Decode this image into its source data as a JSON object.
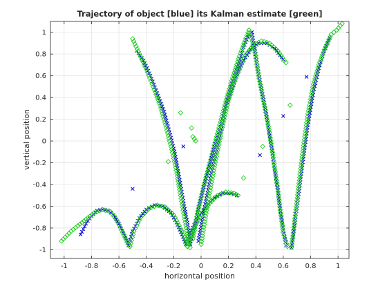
{
  "chart_data": {
    "type": "scatter",
    "title": "Trajectory of object [blue] its Kalman estimate [green]",
    "xlabel": "horizontal position",
    "ylabel": "vertical position",
    "xlim": [
      -1.1,
      1.08
    ],
    "ylim": [
      -1.08,
      1.1
    ],
    "xticks": [
      -1,
      -0.8,
      -0.6,
      -0.4,
      -0.2,
      0,
      0.2,
      0.4,
      0.6,
      0.8,
      1
    ],
    "xtick_labels": [
      "-1",
      "-0.8",
      "-0.6",
      "-0.4",
      "-0.2",
      "0",
      "0.2",
      "0.4",
      "0.6",
      "0.8",
      "1"
    ],
    "yticks": [
      -1,
      -0.8,
      -0.6,
      -0.4,
      -0.2,
      0,
      0.2,
      0.4,
      0.6,
      0.8,
      1
    ],
    "ytick_labels": [
      "-1",
      "-0.8",
      "-0.6",
      "-0.4",
      "-0.2",
      "0",
      "0.2",
      "0.4",
      "0.6",
      "0.8",
      "1"
    ],
    "grid": true,
    "colors": {
      "object": "#0000cc",
      "estimate": "#22cc22",
      "grid": "#e5e5e5",
      "axis": "#262626"
    },
    "series": [
      {
        "marker": "x",
        "color": "#0000cc",
        "segments": [
          [
            [
              -0.88,
              -0.86
            ],
            [
              -0.84,
              -0.76
            ],
            [
              -0.8,
              -0.69
            ],
            [
              -0.76,
              -0.64
            ],
            [
              -0.72,
              -0.63
            ],
            [
              -0.68,
              -0.64
            ],
            [
              -0.64,
              -0.68
            ],
            [
              -0.6,
              -0.76
            ],
            [
              -0.56,
              -0.87
            ],
            [
              -0.53,
              -0.96
            ]
          ],
          [
            [
              -0.53,
              -0.96
            ],
            [
              -0.5,
              -0.83
            ],
            [
              -0.45,
              -0.71
            ],
            [
              -0.4,
              -0.63
            ],
            [
              -0.34,
              -0.59
            ],
            [
              -0.28,
              -0.6
            ],
            [
              -0.22,
              -0.66
            ],
            [
              -0.18,
              -0.75
            ],
            [
              -0.14,
              -0.86
            ],
            [
              -0.11,
              -0.95
            ]
          ],
          [
            [
              -0.11,
              -0.95
            ],
            [
              -0.07,
              -0.82
            ],
            [
              -0.02,
              -0.7
            ],
            [
              0.04,
              -0.6
            ],
            [
              0.1,
              -0.52
            ],
            [
              0.16,
              -0.48
            ],
            [
              0.22,
              -0.48
            ],
            [
              0.26,
              -0.5
            ]
          ],
          [
            [
              -0.47,
              0.83
            ],
            [
              -0.42,
              0.74
            ],
            [
              -0.37,
              0.6
            ],
            [
              -0.32,
              0.44
            ],
            [
              -0.27,
              0.27
            ],
            [
              -0.23,
              0.08
            ],
            [
              -0.19,
              -0.12
            ],
            [
              -0.16,
              -0.33
            ],
            [
              -0.13,
              -0.55
            ],
            [
              -0.1,
              -0.75
            ],
            [
              -0.08,
              -0.95
            ]
          ],
          [
            [
              -0.08,
              -0.95
            ],
            [
              -0.03,
              -0.68
            ],
            [
              0.02,
              -0.42
            ],
            [
              0.07,
              -0.18
            ],
            [
              0.12,
              0.05
            ],
            [
              0.17,
              0.28
            ],
            [
              0.22,
              0.5
            ],
            [
              0.27,
              0.7
            ],
            [
              0.31,
              0.86
            ],
            [
              0.35,
              0.98
            ],
            [
              0.37,
              1.0
            ]
          ],
          [
            [
              0.37,
              1.0
            ],
            [
              0.4,
              0.8
            ],
            [
              0.43,
              0.56
            ],
            [
              0.47,
              0.3
            ],
            [
              0.5,
              0.05
            ],
            [
              0.53,
              -0.2
            ],
            [
              0.56,
              -0.45
            ],
            [
              0.58,
              -0.65
            ],
            [
              0.6,
              -0.82
            ],
            [
              0.62,
              -0.96
            ]
          ],
          [
            [
              -0.02,
              -0.92
            ],
            [
              0.03,
              -0.58
            ],
            [
              0.08,
              -0.27
            ],
            [
              0.13,
              0.03
            ],
            [
              0.18,
              0.3
            ],
            [
              0.24,
              0.54
            ],
            [
              0.3,
              0.72
            ],
            [
              0.36,
              0.84
            ],
            [
              0.42,
              0.9
            ],
            [
              0.48,
              0.9
            ],
            [
              0.54,
              0.85
            ],
            [
              0.6,
              0.75
            ]
          ],
          [
            [
              0.66,
              -0.98
            ],
            [
              0.7,
              -0.62
            ],
            [
              0.74,
              -0.22
            ],
            [
              0.78,
              0.15
            ],
            [
              0.82,
              0.45
            ],
            [
              0.86,
              0.67
            ],
            [
              0.9,
              0.83
            ],
            [
              0.94,
              0.95
            ]
          ],
          [
            [
              -0.5,
              -0.44
            ],
            [
              0.43,
              -0.13
            ],
            [
              0.6,
              0.23
            ],
            [
              0.77,
              0.59
            ],
            [
              -0.13,
              -0.05
            ]
          ]
        ]
      },
      {
        "marker": "diamond",
        "color": "#22cc22",
        "segments": [
          [
            [
              -1.02,
              -0.92
            ],
            [
              -0.95,
              -0.83
            ],
            [
              -0.9,
              -0.78
            ],
            [
              -0.84,
              -0.72
            ],
            [
              -0.78,
              -0.66
            ],
            [
              -0.72,
              -0.63
            ],
            [
              -0.66,
              -0.65
            ],
            [
              -0.62,
              -0.72
            ],
            [
              -0.58,
              -0.82
            ],
            [
              -0.54,
              -0.93
            ],
            [
              -0.52,
              -0.97
            ]
          ],
          [
            [
              -0.52,
              -0.97
            ],
            [
              -0.49,
              -0.83
            ],
            [
              -0.44,
              -0.7
            ],
            [
              -0.38,
              -0.62
            ],
            [
              -0.32,
              -0.59
            ],
            [
              -0.26,
              -0.61
            ],
            [
              -0.2,
              -0.68
            ],
            [
              -0.16,
              -0.78
            ],
            [
              -0.12,
              -0.88
            ],
            [
              -0.1,
              -0.97
            ]
          ],
          [
            [
              -0.1,
              -0.97
            ],
            [
              -0.06,
              -0.82
            ],
            [
              0.0,
              -0.68
            ],
            [
              0.06,
              -0.57
            ],
            [
              0.12,
              -0.5
            ],
            [
              0.18,
              -0.47
            ],
            [
              0.24,
              -0.48
            ],
            [
              0.27,
              -0.5
            ]
          ],
          [
            [
              -0.5,
              0.94
            ],
            [
              -0.45,
              0.8
            ],
            [
              -0.4,
              0.66
            ],
            [
              -0.35,
              0.5
            ],
            [
              -0.3,
              0.33
            ],
            [
              -0.26,
              0.15
            ],
            [
              -0.22,
              -0.05
            ],
            [
              -0.18,
              -0.27
            ],
            [
              -0.15,
              -0.5
            ],
            [
              -0.12,
              -0.72
            ],
            [
              -0.08,
              -0.98
            ]
          ],
          [
            [
              -0.06,
              -0.9
            ],
            [
              -0.02,
              -0.62
            ],
            [
              0.03,
              -0.36
            ],
            [
              0.08,
              -0.12
            ],
            [
              0.13,
              0.12
            ],
            [
              0.18,
              0.36
            ],
            [
              0.23,
              0.58
            ],
            [
              0.28,
              0.78
            ],
            [
              0.32,
              0.92
            ],
            [
              0.35,
              1.02
            ]
          ],
          [
            [
              0.35,
              1.02
            ],
            [
              0.39,
              0.84
            ],
            [
              0.42,
              0.6
            ],
            [
              0.46,
              0.34
            ],
            [
              0.5,
              0.08
            ],
            [
              0.53,
              -0.18
            ],
            [
              0.56,
              -0.44
            ],
            [
              0.58,
              -0.66
            ],
            [
              0.6,
              -0.84
            ],
            [
              0.63,
              -0.97
            ]
          ],
          [
            [
              0.0,
              -0.95
            ],
            [
              0.05,
              -0.56
            ],
            [
              0.1,
              -0.22
            ],
            [
              0.15,
              0.1
            ],
            [
              0.2,
              0.38
            ],
            [
              0.26,
              0.6
            ],
            [
              0.32,
              0.78
            ],
            [
              0.38,
              0.88
            ],
            [
              0.44,
              0.92
            ],
            [
              0.5,
              0.9
            ],
            [
              0.56,
              0.83
            ],
            [
              0.62,
              0.72
            ]
          ],
          [
            [
              0.66,
              -0.98
            ],
            [
              0.7,
              -0.55
            ],
            [
              0.74,
              -0.12
            ],
            [
              0.78,
              0.25
            ],
            [
              0.82,
              0.52
            ],
            [
              0.86,
              0.7
            ],
            [
              0.9,
              0.84
            ],
            [
              0.95,
              0.98
            ],
            [
              0.99,
              1.02
            ],
            [
              1.03,
              1.08
            ]
          ],
          [
            [
              -0.15,
              0.26
            ],
            [
              -0.06,
              0.04
            ],
            [
              -0.04,
              0.0
            ],
            [
              -0.24,
              -0.19
            ],
            [
              0.31,
              -0.34
            ],
            [
              0.45,
              -0.05
            ],
            [
              0.65,
              0.33
            ],
            [
              -0.07,
              0.12
            ],
            [
              -0.05,
              0.02
            ]
          ]
        ]
      }
    ]
  }
}
